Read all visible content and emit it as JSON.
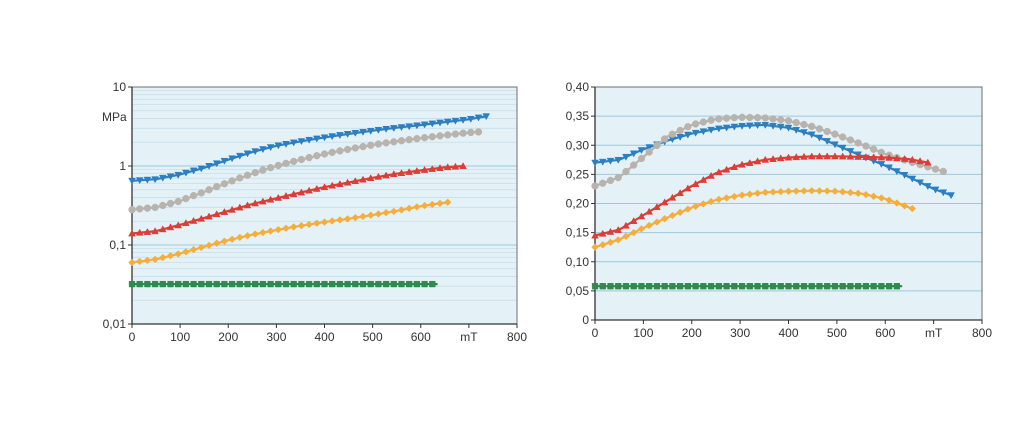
{
  "colors": {
    "plot_bg": "#e4f1f7",
    "grid_major": "#9cc9dc",
    "grid_minor": "#c3dfea",
    "frame": "#6f6f6f"
  },
  "chart_data": [
    {
      "type": "line",
      "yscale": "log",
      "title": "",
      "ylabel": "MPa",
      "xlabel": "mT",
      "xlim": [
        0,
        800
      ],
      "ylim": [
        0.01,
        10
      ],
      "x_ticks": [
        "0",
        "100",
        "200",
        "300",
        "400",
        "500",
        "600",
        "mT",
        "800"
      ],
      "y_ticks": [
        "10",
        "1",
        "0,1",
        "0,01"
      ],
      "series": [
        {
          "name": "blue",
          "marker": "triangle-down",
          "color": "#2b7fc2",
          "x": [
            0,
            50,
            100,
            150,
            200,
            250,
            300,
            350,
            400,
            450,
            500,
            550,
            600,
            650,
            700,
            740
          ],
          "y": [
            0.65,
            0.68,
            0.78,
            0.95,
            1.2,
            1.5,
            1.8,
            2.05,
            2.3,
            2.55,
            2.8,
            3.05,
            3.3,
            3.6,
            3.9,
            4.3
          ]
        },
        {
          "name": "grey",
          "marker": "circle",
          "color": "#b8b3ad",
          "x": [
            0,
            50,
            100,
            150,
            200,
            250,
            300,
            350,
            400,
            450,
            500,
            550,
            600,
            650,
            700,
            720
          ],
          "y": [
            0.28,
            0.3,
            0.36,
            0.47,
            0.62,
            0.8,
            1.0,
            1.2,
            1.42,
            1.63,
            1.85,
            2.05,
            2.25,
            2.45,
            2.65,
            2.7
          ]
        },
        {
          "name": "red",
          "marker": "triangle-up",
          "color": "#dc3d36",
          "x": [
            0,
            50,
            100,
            150,
            200,
            250,
            300,
            350,
            400,
            450,
            500,
            550,
            600,
            650,
            690
          ],
          "y": [
            0.14,
            0.15,
            0.18,
            0.22,
            0.27,
            0.33,
            0.39,
            0.46,
            0.54,
            0.62,
            0.71,
            0.8,
            0.88,
            0.96,
            1.0
          ]
        },
        {
          "name": "orange",
          "marker": "diamond",
          "color": "#f5ad3c",
          "x": [
            0,
            50,
            100,
            150,
            200,
            250,
            300,
            350,
            400,
            450,
            500,
            550,
            600,
            630,
            660
          ],
          "y": [
            0.06,
            0.066,
            0.078,
            0.095,
            0.115,
            0.135,
            0.155,
            0.175,
            0.195,
            0.215,
            0.24,
            0.27,
            0.31,
            0.33,
            0.35
          ]
        },
        {
          "name": "green",
          "marker": "square",
          "color": "#2f8a4f",
          "x": [
            0,
            50,
            100,
            150,
            200,
            250,
            300,
            350,
            400,
            450,
            500,
            550,
            600,
            635
          ],
          "y": [
            0.032,
            0.032,
            0.032,
            0.032,
            0.032,
            0.032,
            0.032,
            0.032,
            0.032,
            0.032,
            0.032,
            0.032,
            0.032,
            0.032
          ]
        }
      ]
    },
    {
      "type": "line",
      "yscale": "linear",
      "title": "",
      "ylabel": "",
      "xlabel": "mT",
      "xlim": [
        0,
        800
      ],
      "ylim": [
        0,
        0.4
      ],
      "x_ticks": [
        "0",
        "100",
        "200",
        "300",
        "400",
        "500",
        "600",
        "mT",
        "800"
      ],
      "y_ticks": [
        "0,40",
        "0,35",
        "0,30",
        "0,25",
        "0,20",
        "0,15",
        "0,10",
        "0,05",
        "0"
      ],
      "series": [
        {
          "name": "blue",
          "marker": "triangle-down",
          "color": "#2b7fc2",
          "x": [
            0,
            50,
            100,
            150,
            200,
            250,
            300,
            350,
            400,
            450,
            500,
            550,
            600,
            650,
            700,
            740
          ],
          "y": [
            0.27,
            0.275,
            0.293,
            0.308,
            0.32,
            0.328,
            0.333,
            0.335,
            0.33,
            0.318,
            0.3,
            0.282,
            0.265,
            0.245,
            0.225,
            0.213
          ]
        },
        {
          "name": "grey",
          "marker": "circle",
          "color": "#b8b3ad",
          "x": [
            0,
            50,
            100,
            150,
            200,
            250,
            300,
            350,
            400,
            450,
            500,
            550,
            600,
            650,
            700,
            720
          ],
          "y": [
            0.23,
            0.245,
            0.28,
            0.315,
            0.335,
            0.345,
            0.348,
            0.347,
            0.342,
            0.332,
            0.318,
            0.302,
            0.285,
            0.272,
            0.26,
            0.255
          ]
        },
        {
          "name": "red",
          "marker": "triangle-up",
          "color": "#dc3d36",
          "x": [
            0,
            50,
            100,
            150,
            200,
            250,
            300,
            350,
            400,
            450,
            500,
            550,
            600,
            650,
            690
          ],
          "y": [
            0.145,
            0.155,
            0.18,
            0.205,
            0.23,
            0.252,
            0.266,
            0.275,
            0.279,
            0.281,
            0.281,
            0.28,
            0.279,
            0.276,
            0.27
          ]
        },
        {
          "name": "orange",
          "marker": "diamond",
          "color": "#f5ad3c",
          "x": [
            0,
            50,
            100,
            150,
            200,
            250,
            300,
            350,
            400,
            450,
            500,
            550,
            600,
            630,
            660
          ],
          "y": [
            0.125,
            0.138,
            0.158,
            0.176,
            0.193,
            0.206,
            0.214,
            0.219,
            0.221,
            0.222,
            0.221,
            0.217,
            0.208,
            0.199,
            0.19
          ]
        },
        {
          "name": "green",
          "marker": "square",
          "color": "#2f8a4f",
          "x": [
            0,
            50,
            100,
            150,
            200,
            250,
            300,
            350,
            400,
            450,
            500,
            550,
            600,
            635
          ],
          "y": [
            0.058,
            0.058,
            0.058,
            0.058,
            0.058,
            0.058,
            0.058,
            0.058,
            0.058,
            0.058,
            0.058,
            0.058,
            0.058,
            0.058
          ]
        }
      ]
    }
  ]
}
